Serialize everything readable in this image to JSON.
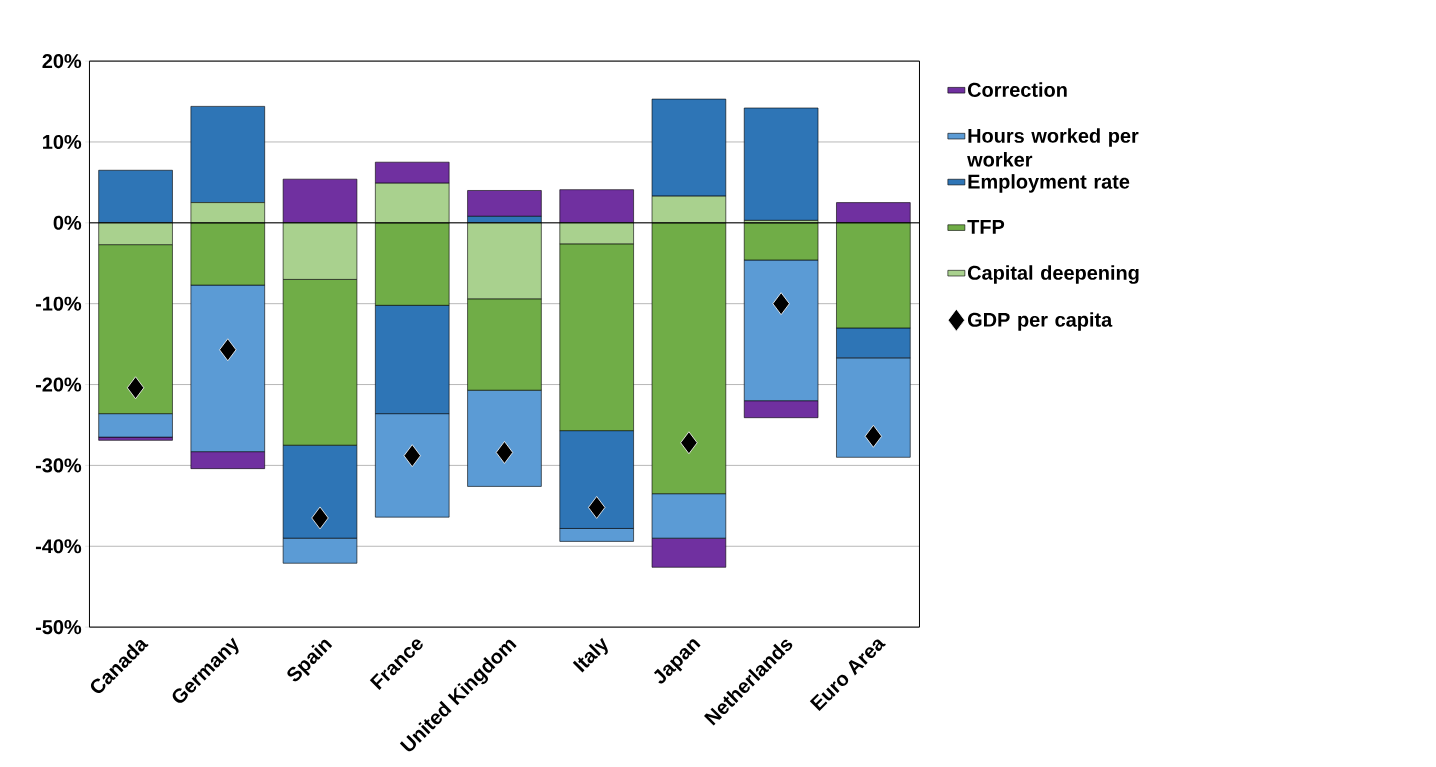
{
  "chart_data": {
    "type": "bar",
    "stacked": true,
    "categories": [
      "Canada",
      "Germany",
      "Spain",
      "France",
      "United Kingdom",
      "Italy",
      "Japan",
      "Netherlands",
      "Euro Area"
    ],
    "series": [
      {
        "name": "Capital deepening",
        "color": "#a9d18e",
        "values": [
          -2.7,
          2.5,
          -7.0,
          4.9,
          -9.4,
          -2.6,
          3.3,
          0.3,
          null
        ]
      },
      {
        "name": "TFP",
        "color": "#70ad47",
        "values": [
          -20.9,
          -7.7,
          -20.5,
          -10.2,
          -11.3,
          -23.1,
          -33.5,
          -4.6,
          -13.0
        ]
      },
      {
        "name": "Employment rate",
        "color": "#2e75b6",
        "values": [
          6.5,
          11.9,
          -11.5,
          -13.4,
          0.8,
          -12.1,
          12.0,
          13.9,
          -3.7
        ]
      },
      {
        "name": "Hours worked per worker",
        "color": "#5b9bd5",
        "values": [
          -2.9,
          -20.6,
          -3.1,
          -12.8,
          -11.9,
          -1.6,
          -5.5,
          -17.4,
          -12.3
        ]
      },
      {
        "name": "Correction",
        "color": "#7030a0",
        "values": [
          -0.4,
          -2.1,
          5.4,
          2.6,
          3.2,
          4.1,
          -3.6,
          -2.1,
          2.5
        ]
      },
      {
        "name": "GDP per capita",
        "type": "scatter",
        "marker": "diamond",
        "color": "#000000",
        "values": [
          -20.4,
          -15.7,
          -36.5,
          -28.8,
          -28.4,
          -35.2,
          -27.2,
          -10.0,
          -26.4
        ]
      }
    ],
    "ylim": [
      -50,
      20
    ],
    "yticks": [
      {
        "value": -50,
        "label": "-50%"
      },
      {
        "value": -40,
        "label": "-40%"
      },
      {
        "value": -30,
        "label": "-30%"
      },
      {
        "value": -20,
        "label": "-20%"
      },
      {
        "value": -10,
        "label": "-10%"
      },
      {
        "value": 0,
        "label": "0%"
      },
      {
        "value": 10,
        "label": "10%"
      },
      {
        "value": 20,
        "label": "20%"
      }
    ],
    "grid": "y",
    "legend": "right"
  }
}
